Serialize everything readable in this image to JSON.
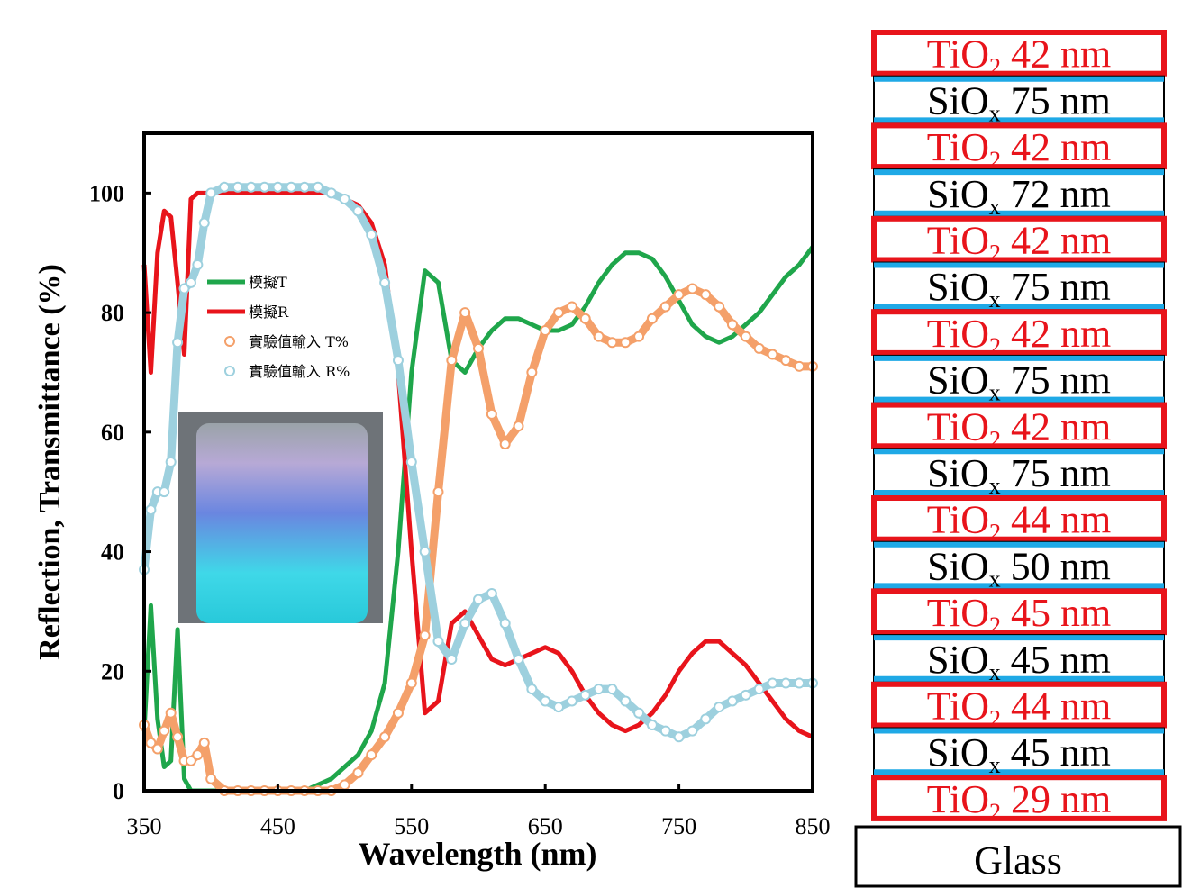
{
  "chart_data": {
    "type": "line",
    "xlabel": "Wavelength (nm)",
    "ylabel": "Reflection, Transmittance (%)",
    "x": [
      350,
      355,
      360,
      365,
      370,
      375,
      380,
      385,
      390,
      395,
      400,
      410,
      420,
      430,
      440,
      450,
      460,
      470,
      480,
      490,
      500,
      510,
      520,
      530,
      540,
      550,
      560,
      570,
      580,
      590,
      600,
      610,
      620,
      630,
      640,
      650,
      660,
      670,
      680,
      690,
      700,
      710,
      720,
      730,
      740,
      750,
      760,
      770,
      780,
      790,
      800,
      810,
      820,
      830,
      840,
      850
    ],
    "xlim": [
      350,
      850
    ],
    "xticks": [
      350,
      450,
      550,
      650,
      750,
      850
    ],
    "ylim": [
      0,
      110
    ],
    "yticks": [
      0,
      20,
      40,
      60,
      80,
      100
    ],
    "grid": false,
    "legend": "upper left",
    "series": [
      {
        "name": "模擬T",
        "color": "#1fa64b",
        "marker": "none",
        "values": [
          10,
          31,
          12,
          4,
          5,
          27,
          2,
          0,
          0,
          0,
          0,
          0,
          0,
          0,
          0,
          0,
          0,
          0,
          1,
          2,
          4,
          6,
          10,
          18,
          40,
          70,
          87,
          85,
          72,
          70,
          74,
          77,
          79,
          79,
          78,
          77,
          77,
          78,
          81,
          85,
          88,
          90,
          90,
          89,
          86,
          82,
          78,
          76,
          75,
          76,
          78,
          80,
          83,
          86,
          88,
          91
        ]
      },
      {
        "name": "模擬R",
        "color": "#e8141b",
        "marker": "none",
        "values": [
          88,
          70,
          90,
          97,
          96,
          85,
          73,
          99,
          100,
          100,
          100,
          100,
          100,
          100,
          100,
          100,
          100,
          100,
          100,
          100,
          99,
          98,
          95,
          88,
          70,
          40,
          13,
          15,
          28,
          30,
          26,
          22,
          21,
          22,
          23,
          24,
          23,
          20,
          16,
          13,
          11,
          10,
          11,
          13,
          16,
          20,
          23,
          25,
          25,
          23,
          21,
          18,
          15,
          12,
          10,
          9
        ]
      },
      {
        "name": "實驗值輸入 T%",
        "color": "#f4a06a",
        "marker": "circle",
        "values": [
          11,
          8,
          7,
          10,
          13,
          9,
          5,
          5,
          6,
          8,
          2,
          0,
          0,
          0,
          0,
          0,
          0,
          0,
          0,
          0,
          1,
          3,
          6,
          9,
          13,
          18,
          26,
          50,
          72,
          80,
          74,
          63,
          58,
          61,
          70,
          77,
          80,
          81,
          79,
          76,
          75,
          75,
          76,
          79,
          81,
          83,
          84,
          83,
          81,
          78,
          76,
          74,
          73,
          72,
          71,
          71
        ]
      },
      {
        "name": "實驗值輸入 R%",
        "color": "#9dd0de",
        "marker": "circle",
        "values": [
          37,
          47,
          50,
          50,
          55,
          75,
          84,
          85,
          88,
          95,
          100,
          101,
          101,
          101,
          101,
          101,
          101,
          101,
          101,
          100,
          99,
          97,
          93,
          85,
          72,
          55,
          40,
          25,
          22,
          28,
          32,
          33,
          28,
          22,
          17,
          15,
          14,
          15,
          16,
          17,
          17,
          15,
          13,
          11,
          10,
          9,
          10,
          12,
          14,
          15,
          16,
          17,
          18,
          18,
          18,
          18
        ]
      }
    ]
  },
  "stack": {
    "layers": [
      {
        "material": "TiO",
        "sub": "2",
        "thickness": "42 nm"
      },
      {
        "material": "SiO",
        "sub": "x",
        "thickness": "75 nm"
      },
      {
        "material": "TiO",
        "sub": "2",
        "thickness": "42 nm"
      },
      {
        "material": "SiO",
        "sub": "x",
        "thickness": "72 nm"
      },
      {
        "material": "TiO",
        "sub": "2",
        "thickness": "42 nm"
      },
      {
        "material": "SiO",
        "sub": "x",
        "thickness": "75 nm"
      },
      {
        "material": "TiO",
        "sub": "2",
        "thickness": "42 nm"
      },
      {
        "material": "SiO",
        "sub": "x",
        "thickness": "75 nm"
      },
      {
        "material": "TiO",
        "sub": "2",
        "thickness": "42 nm"
      },
      {
        "material": "SiO",
        "sub": "x",
        "thickness": "75 nm"
      },
      {
        "material": "TiO",
        "sub": "2",
        "thickness": "44 nm"
      },
      {
        "material": "SiO",
        "sub": "x",
        "thickness": "50 nm"
      },
      {
        "material": "TiO",
        "sub": "2",
        "thickness": "45 nm"
      },
      {
        "material": "SiO",
        "sub": "x",
        "thickness": "45 nm"
      },
      {
        "material": "TiO",
        "sub": "2",
        "thickness": "44 nm"
      },
      {
        "material": "SiO",
        "sub": "x",
        "thickness": "45 nm"
      },
      {
        "material": "TiO",
        "sub": "2",
        "thickness": "29 nm"
      }
    ],
    "substrate": "Glass"
  }
}
